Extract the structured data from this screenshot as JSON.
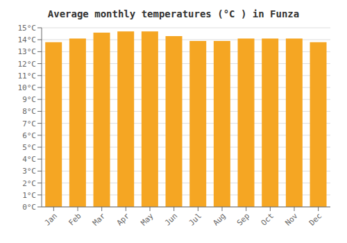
{
  "chart_data": {
    "type": "bar",
    "title": "Average monthly temperatures (°C ) in Funza",
    "categories": [
      "Jan",
      "Feb",
      "Mar",
      "Apr",
      "May",
      "Jun",
      "Jul",
      "Aug",
      "Sep",
      "Oct",
      "Nov",
      "Dec"
    ],
    "values": [
      13.8,
      14.1,
      14.6,
      14.7,
      14.7,
      14.3,
      13.9,
      13.9,
      14.1,
      14.1,
      14.1,
      13.8
    ],
    "color": "#F5A623",
    "ylim": [
      0,
      15
    ],
    "yticks": [
      {
        "value": 0,
        "label": "0°C"
      },
      {
        "value": 1,
        "label": "1°C"
      },
      {
        "value": 2,
        "label": "2°C"
      },
      {
        "value": 3,
        "label": "3°C"
      },
      {
        "value": 4,
        "label": "4°C"
      },
      {
        "value": 5,
        "label": "5°C"
      },
      {
        "value": 6,
        "label": "6°C"
      },
      {
        "value": 7,
        "label": "7°C"
      },
      {
        "value": 8,
        "label": "8°C"
      },
      {
        "value": 9,
        "label": "9°C"
      },
      {
        "value": 10,
        "label": "10°C"
      },
      {
        "value": 11,
        "label": "11°C"
      },
      {
        "value": 12,
        "label": "12°C"
      },
      {
        "value": 13,
        "label": "13°C"
      },
      {
        "value": 14,
        "label": "14°C"
      },
      {
        "value": 15,
        "label": "15°C"
      }
    ],
    "grid": true
  }
}
